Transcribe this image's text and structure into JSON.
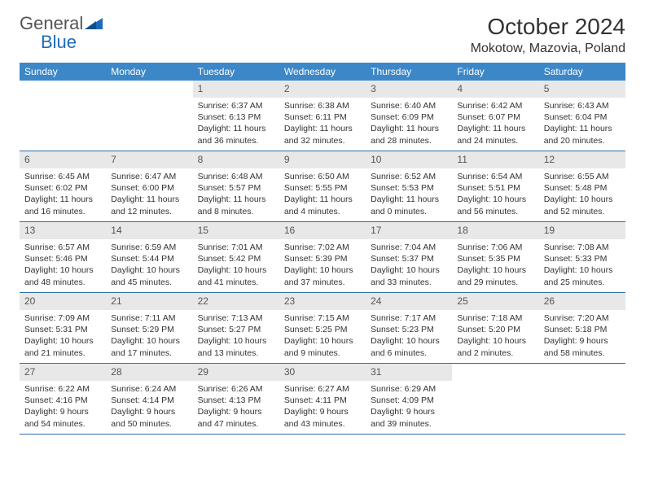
{
  "logo": {
    "word1": "General",
    "word2": "Blue"
  },
  "title": "October 2024",
  "location": "Mokotow, Mazovia, Poland",
  "colors": {
    "header_bg": "#3b87c8",
    "row_border": "#2f6fa8",
    "daynum_bg": "#e8e8e8",
    "logo_gray": "#555555",
    "logo_blue": "#1b6bb8"
  },
  "day_headers": [
    "Sunday",
    "Monday",
    "Tuesday",
    "Wednesday",
    "Thursday",
    "Friday",
    "Saturday"
  ],
  "weeks": [
    [
      null,
      null,
      {
        "n": "1",
        "sr": "Sunrise: 6:37 AM",
        "ss": "Sunset: 6:13 PM",
        "dl": "Daylight: 11 hours and 36 minutes."
      },
      {
        "n": "2",
        "sr": "Sunrise: 6:38 AM",
        "ss": "Sunset: 6:11 PM",
        "dl": "Daylight: 11 hours and 32 minutes."
      },
      {
        "n": "3",
        "sr": "Sunrise: 6:40 AM",
        "ss": "Sunset: 6:09 PM",
        "dl": "Daylight: 11 hours and 28 minutes."
      },
      {
        "n": "4",
        "sr": "Sunrise: 6:42 AM",
        "ss": "Sunset: 6:07 PM",
        "dl": "Daylight: 11 hours and 24 minutes."
      },
      {
        "n": "5",
        "sr": "Sunrise: 6:43 AM",
        "ss": "Sunset: 6:04 PM",
        "dl": "Daylight: 11 hours and 20 minutes."
      }
    ],
    [
      {
        "n": "6",
        "sr": "Sunrise: 6:45 AM",
        "ss": "Sunset: 6:02 PM",
        "dl": "Daylight: 11 hours and 16 minutes."
      },
      {
        "n": "7",
        "sr": "Sunrise: 6:47 AM",
        "ss": "Sunset: 6:00 PM",
        "dl": "Daylight: 11 hours and 12 minutes."
      },
      {
        "n": "8",
        "sr": "Sunrise: 6:48 AM",
        "ss": "Sunset: 5:57 PM",
        "dl": "Daylight: 11 hours and 8 minutes."
      },
      {
        "n": "9",
        "sr": "Sunrise: 6:50 AM",
        "ss": "Sunset: 5:55 PM",
        "dl": "Daylight: 11 hours and 4 minutes."
      },
      {
        "n": "10",
        "sr": "Sunrise: 6:52 AM",
        "ss": "Sunset: 5:53 PM",
        "dl": "Daylight: 11 hours and 0 minutes."
      },
      {
        "n": "11",
        "sr": "Sunrise: 6:54 AM",
        "ss": "Sunset: 5:51 PM",
        "dl": "Daylight: 10 hours and 56 minutes."
      },
      {
        "n": "12",
        "sr": "Sunrise: 6:55 AM",
        "ss": "Sunset: 5:48 PM",
        "dl": "Daylight: 10 hours and 52 minutes."
      }
    ],
    [
      {
        "n": "13",
        "sr": "Sunrise: 6:57 AM",
        "ss": "Sunset: 5:46 PM",
        "dl": "Daylight: 10 hours and 48 minutes."
      },
      {
        "n": "14",
        "sr": "Sunrise: 6:59 AM",
        "ss": "Sunset: 5:44 PM",
        "dl": "Daylight: 10 hours and 45 minutes."
      },
      {
        "n": "15",
        "sr": "Sunrise: 7:01 AM",
        "ss": "Sunset: 5:42 PM",
        "dl": "Daylight: 10 hours and 41 minutes."
      },
      {
        "n": "16",
        "sr": "Sunrise: 7:02 AM",
        "ss": "Sunset: 5:39 PM",
        "dl": "Daylight: 10 hours and 37 minutes."
      },
      {
        "n": "17",
        "sr": "Sunrise: 7:04 AM",
        "ss": "Sunset: 5:37 PM",
        "dl": "Daylight: 10 hours and 33 minutes."
      },
      {
        "n": "18",
        "sr": "Sunrise: 7:06 AM",
        "ss": "Sunset: 5:35 PM",
        "dl": "Daylight: 10 hours and 29 minutes."
      },
      {
        "n": "19",
        "sr": "Sunrise: 7:08 AM",
        "ss": "Sunset: 5:33 PM",
        "dl": "Daylight: 10 hours and 25 minutes."
      }
    ],
    [
      {
        "n": "20",
        "sr": "Sunrise: 7:09 AM",
        "ss": "Sunset: 5:31 PM",
        "dl": "Daylight: 10 hours and 21 minutes."
      },
      {
        "n": "21",
        "sr": "Sunrise: 7:11 AM",
        "ss": "Sunset: 5:29 PM",
        "dl": "Daylight: 10 hours and 17 minutes."
      },
      {
        "n": "22",
        "sr": "Sunrise: 7:13 AM",
        "ss": "Sunset: 5:27 PM",
        "dl": "Daylight: 10 hours and 13 minutes."
      },
      {
        "n": "23",
        "sr": "Sunrise: 7:15 AM",
        "ss": "Sunset: 5:25 PM",
        "dl": "Daylight: 10 hours and 9 minutes."
      },
      {
        "n": "24",
        "sr": "Sunrise: 7:17 AM",
        "ss": "Sunset: 5:23 PM",
        "dl": "Daylight: 10 hours and 6 minutes."
      },
      {
        "n": "25",
        "sr": "Sunrise: 7:18 AM",
        "ss": "Sunset: 5:20 PM",
        "dl": "Daylight: 10 hours and 2 minutes."
      },
      {
        "n": "26",
        "sr": "Sunrise: 7:20 AM",
        "ss": "Sunset: 5:18 PM",
        "dl": "Daylight: 9 hours and 58 minutes."
      }
    ],
    [
      {
        "n": "27",
        "sr": "Sunrise: 6:22 AM",
        "ss": "Sunset: 4:16 PM",
        "dl": "Daylight: 9 hours and 54 minutes."
      },
      {
        "n": "28",
        "sr": "Sunrise: 6:24 AM",
        "ss": "Sunset: 4:14 PM",
        "dl": "Daylight: 9 hours and 50 minutes."
      },
      {
        "n": "29",
        "sr": "Sunrise: 6:26 AM",
        "ss": "Sunset: 4:13 PM",
        "dl": "Daylight: 9 hours and 47 minutes."
      },
      {
        "n": "30",
        "sr": "Sunrise: 6:27 AM",
        "ss": "Sunset: 4:11 PM",
        "dl": "Daylight: 9 hours and 43 minutes."
      },
      {
        "n": "31",
        "sr": "Sunrise: 6:29 AM",
        "ss": "Sunset: 4:09 PM",
        "dl": "Daylight: 9 hours and 39 minutes."
      },
      null,
      null
    ]
  ]
}
